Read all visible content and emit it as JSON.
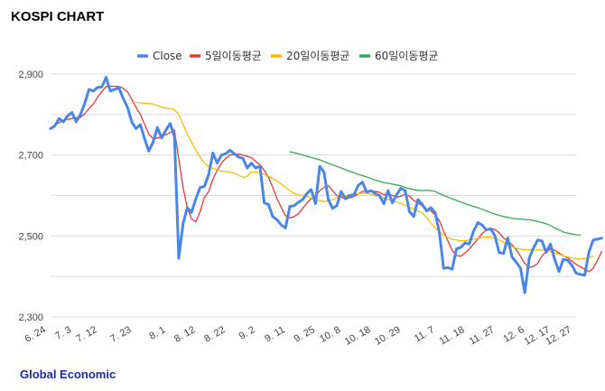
{
  "title": "KOSPI CHART",
  "footer": "Global Economic",
  "colors": {
    "title": "#000000",
    "footer": "#1a2aa8",
    "grid": "#d9d9d9"
  },
  "chart_data": {
    "type": "line",
    "title": "KOSPI CHART",
    "xlabel": "",
    "ylabel": "",
    "ylim": [
      2300,
      2900
    ],
    "yticks": [
      2300,
      2500,
      2700,
      2900
    ],
    "ytick_labels": [
      "2,300",
      "2,500",
      "2,700",
      "2,900"
    ],
    "grid": true,
    "legend_position": "top",
    "n": 124,
    "xtick_labels": [
      {
        "i": 0,
        "label": "6. 24"
      },
      {
        "i": 6,
        "label": "7. 3"
      },
      {
        "i": 12,
        "label": "7. 12"
      },
      {
        "i": 20,
        "label": "7. 23"
      },
      {
        "i": 28,
        "label": "8. 1"
      },
      {
        "i": 35,
        "label": "8. 12"
      },
      {
        "i": 42,
        "label": "8. 22"
      },
      {
        "i": 49,
        "label": "9. 2"
      },
      {
        "i": 56,
        "label": "9. 11"
      },
      {
        "i": 63,
        "label": "9. 25"
      },
      {
        "i": 69,
        "label": "10. 8"
      },
      {
        "i": 76,
        "label": "10. 18"
      },
      {
        "i": 83,
        "label": "10. 29"
      },
      {
        "i": 91,
        "label": "11. 7"
      },
      {
        "i": 98,
        "label": "11. 18"
      },
      {
        "i": 105,
        "label": "11. 27"
      },
      {
        "i": 112,
        "label": "12. 6"
      },
      {
        "i": 118,
        "label": "12. 17"
      },
      {
        "i": 124,
        "label": "12. 27"
      }
    ],
    "series": [
      {
        "name": "Close",
        "color": "#4a86e8",
        "width": 3,
        "start": 0,
        "values": [
          2765,
          2772,
          2790,
          2782,
          2797,
          2805,
          2782,
          2800,
          2828,
          2862,
          2858,
          2867,
          2868,
          2892,
          2858,
          2862,
          2866,
          2840,
          2818,
          2782,
          2765,
          2775,
          2740,
          2710,
          2732,
          2768,
          2742,
          2762,
          2778,
          2745,
          2445,
          2530,
          2570,
          2558,
          2592,
          2620,
          2622,
          2652,
          2705,
          2680,
          2700,
          2703,
          2712,
          2703,
          2695,
          2692,
          2668,
          2680,
          2668,
          2672,
          2582,
          2578,
          2548,
          2540,
          2527,
          2520,
          2573,
          2575,
          2583,
          2590,
          2605,
          2615,
          2580,
          2672,
          2658,
          2590,
          2568,
          2575,
          2610,
          2592,
          2600,
          2602,
          2625,
          2633,
          2608,
          2612,
          2605,
          2600,
          2580,
          2612,
          2582,
          2602,
          2618,
          2612,
          2560,
          2548,
          2590,
          2578,
          2562,
          2570,
          2558,
          2508,
          2420,
          2422,
          2418,
          2468,
          2472,
          2483,
          2480,
          2512,
          2533,
          2527,
          2515,
          2518,
          2500,
          2459,
          2457,
          2495,
          2448,
          2435,
          2420,
          2360,
          2445,
          2470,
          2490,
          2488,
          2460,
          2480,
          2442,
          2412,
          2442,
          2440,
          2428,
          2408,
          2405,
          2403,
          2460,
          2490,
          2492,
          2495
        ]
      },
      {
        "name": "5일이동평균",
        "color": "#e53935",
        "width": 1.3,
        "start": 0,
        "values": [
          2768,
          2773,
          2780,
          2784,
          2788,
          2790,
          2792,
          2793,
          2802,
          2815,
          2826,
          2843,
          2857,
          2869,
          2870,
          2870,
          2869,
          2865,
          2856,
          2838,
          2818,
          2800,
          2776,
          2752,
          2740,
          2742,
          2745,
          2751,
          2755,
          2762,
          2690,
          2620,
          2570,
          2542,
          2535,
          2560,
          2595,
          2610,
          2640,
          2662,
          2680,
          2692,
          2700,
          2702,
          2702,
          2700,
          2697,
          2694,
          2684,
          2676,
          2662,
          2645,
          2620,
          2592,
          2570,
          2550,
          2545,
          2548,
          2555,
          2568,
          2582,
          2592,
          2598,
          2612,
          2620,
          2624,
          2612,
          2600,
          2596,
          2592,
          2594,
          2598,
          2604,
          2610,
          2612,
          2612,
          2610,
          2608,
          2602,
          2604,
          2600,
          2596,
          2598,
          2604,
          2598,
          2588,
          2582,
          2574,
          2566,
          2562,
          2552,
          2538,
          2512,
          2488,
          2464,
          2452,
          2450,
          2458,
          2468,
          2480,
          2492,
          2506,
          2515,
          2518,
          2516,
          2508,
          2495,
          2488,
          2478,
          2466,
          2450,
          2432,
          2422,
          2425,
          2432,
          2450,
          2462,
          2468,
          2465,
          2458,
          2452,
          2446,
          2438,
          2430,
          2424,
          2418,
          2412,
          2420,
          2440,
          2462
        ]
      },
      {
        "name": "20일이동평균",
        "color": "#fbbc04",
        "width": 1.3,
        "start": 19,
        "values": [
          2830,
          2830,
          2829,
          2828,
          2827,
          2826,
          2822,
          2818,
          2816,
          2815,
          2812,
          2800,
          2776,
          2752,
          2732,
          2712,
          2695,
          2680,
          2672,
          2667,
          2664,
          2660,
          2659,
          2658,
          2655,
          2650,
          2645,
          2647,
          2658,
          2658,
          2656,
          2652,
          2648,
          2642,
          2636,
          2628,
          2620,
          2612,
          2606,
          2602,
          2600,
          2598,
          2594,
          2590,
          2587,
          2585,
          2587,
          2590,
          2594,
          2598,
          2600,
          2602,
          2603,
          2605,
          2606,
          2606,
          2603,
          2600,
          2597,
          2594,
          2590,
          2587,
          2584,
          2580,
          2576,
          2570,
          2566,
          2562,
          2557,
          2546,
          2532,
          2520,
          2510,
          2502,
          2496,
          2492,
          2490,
          2488,
          2488,
          2490,
          2492,
          2494,
          2496,
          2497,
          2497,
          2494,
          2490,
          2484,
          2478,
          2474,
          2470,
          2468,
          2466,
          2466,
          2466,
          2466,
          2465,
          2464,
          2462,
          2458,
          2455,
          2452,
          2448,
          2446,
          2444,
          2443,
          2444,
          2446,
          2450
        ]
      },
      {
        "name": "60일이동평균",
        "color": "#34a853",
        "width": 1.3,
        "start": 56,
        "values": [
          2708,
          2706,
          2703,
          2700,
          2697,
          2694,
          2691,
          2688,
          2684,
          2680,
          2676,
          2672,
          2668,
          2664,
          2660,
          2656,
          2652,
          2649,
          2646,
          2642,
          2638,
          2635,
          2632,
          2630,
          2628,
          2626,
          2624,
          2620,
          2617,
          2615,
          2613,
          2612,
          2613,
          2612,
          2610,
          2605,
          2600,
          2596,
          2592,
          2588,
          2584,
          2580,
          2576,
          2573,
          2570,
          2566,
          2562,
          2558,
          2554,
          2551,
          2548,
          2546,
          2544,
          2542,
          2542,
          2541,
          2540,
          2538,
          2536,
          2533,
          2530,
          2526,
          2520,
          2515,
          2510,
          2507,
          2505,
          2503,
          2502
        ]
      }
    ]
  }
}
